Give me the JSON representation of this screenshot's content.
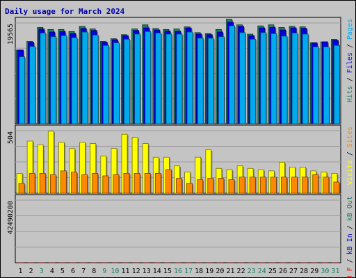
{
  "chart_data": {
    "type": "bar",
    "title": "Daily usage for March 2024",
    "days": [
      "1",
      "2",
      "3",
      "4",
      "5",
      "6",
      "7",
      "8",
      "9",
      "10",
      "11",
      "12",
      "13",
      "14",
      "15",
      "16",
      "17",
      "18",
      "19",
      "20",
      "21",
      "22",
      "23",
      "24",
      "25",
      "26",
      "27",
      "28",
      "29",
      "30",
      "31"
    ],
    "weekend_days": [
      "3",
      "9",
      "10",
      "16",
      "17",
      "23",
      "24",
      "30",
      "31"
    ],
    "panels": [
      {
        "id": "hits",
        "max_label": "19565",
        "ymax": 19565,
        "series": [
          {
            "name": "Hits",
            "color": "#1e7e64",
            "values": [
              14300,
              16000,
              18700,
              18300,
              18300,
              17900,
              18900,
              18400,
              16000,
              16500,
              17300,
              18400,
              19200,
              18500,
              18300,
              18400,
              18800,
              17700,
              17500,
              18300,
              20300,
              19200,
              17400,
              19000,
              19200,
              18700,
              18900,
              18800,
              15700,
              15900,
              16400
            ]
          },
          {
            "name": "Files",
            "color": "#0000e0",
            "values": [
              14300,
              15800,
              18400,
              17800,
              17900,
              17500,
              18500,
              18100,
              15800,
              16300,
              17100,
              18100,
              18600,
              18200,
              18000,
              17900,
              18600,
              17400,
              17300,
              17800,
              19700,
              18900,
              17100,
              18600,
              18700,
              18200,
              18600,
              18500,
              15700,
              15900,
              16200
            ]
          },
          {
            "name": "Pages",
            "color": "#00aaee",
            "values": [
              13000,
              15000,
              17600,
              16900,
              17100,
              16700,
              17800,
              17200,
              15200,
              15700,
              16400,
              17400,
              17900,
              17600,
              17400,
              17400,
              17800,
              16600,
              16600,
              16900,
              19000,
              17700,
              16400,
              17700,
              17500,
              17000,
              17600,
              17400,
              14900,
              14900,
              15200
            ]
          }
        ]
      },
      {
        "id": "visits",
        "max_label": "504",
        "ymax": 504,
        "series": [
          {
            "name": "Visits",
            "color": "#ffff00",
            "values": [
              160,
              420,
              390,
              500,
              410,
              360,
              410,
              400,
              300,
              360,
              475,
              450,
              400,
              290,
              290,
              220,
              170,
              290,
              350,
              200,
              190,
              220,
              200,
              190,
              180,
              250,
              210,
              210,
              180,
              170,
              160
            ]
          },
          {
            "name": "Sites",
            "color": "#ff8800",
            "values": [
              80,
              160,
              160,
              150,
              180,
              170,
              150,
              160,
              140,
              150,
              160,
              160,
              160,
              160,
              190,
              120,
              80,
              110,
              120,
              120,
              110,
              130,
              130,
              130,
              130,
              130,
              130,
              130,
              150,
              130,
              90
            ]
          }
        ]
      },
      {
        "id": "kbytes",
        "max_label": "42490200",
        "ymax": 42490200,
        "series": [
          {
            "name": "kB F",
            "color": "#ff0000",
            "values": [
              34000,
              35500,
              39500,
              33500,
              27500,
              27000,
              29000,
              16000,
              12000,
              10000,
              11000,
              20500,
              32000,
              25000,
              24500,
              25000,
              21500,
              27000,
              38500,
              40500,
              44000,
              42000,
              39000,
              42500,
              42000,
              41500,
              32500,
              31000,
              35500,
              37500,
              39000
            ]
          },
          {
            "name": "kB In",
            "color": "#0000e0",
            "values": []
          },
          {
            "name": "kB Out",
            "color": "#1e7e64",
            "values": []
          }
        ]
      }
    ]
  }
}
